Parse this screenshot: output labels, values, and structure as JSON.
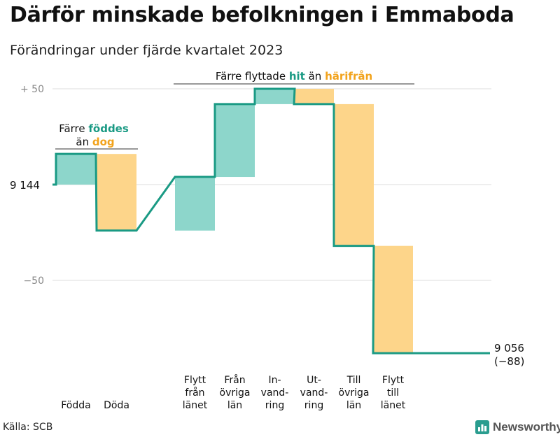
{
  "header": {
    "title": "Därför minskade befolkningen i Emmaboda",
    "subtitle": "Förändringar under fjärde kvartalet 2023"
  },
  "footer": {
    "source": "Källa: SCB",
    "brand": "Newsworthy"
  },
  "colors": {
    "in": "#8dd6cb",
    "out": "#fdd58a",
    "line": "#1a9a84",
    "highlight_in": "#1a9a84",
    "highlight_out": "#f2a31c",
    "grid": "#dddddd",
    "tick_text": "#888888",
    "brand_icon": "#2a9d8f"
  },
  "annotations": {
    "births": {
      "pre": "Färre",
      "hl1": "föddes",
      "mid": "än",
      "hl2": "dog"
    },
    "moves": {
      "pre": "Färre flyttade",
      "hl1": "hit",
      "mid": "än",
      "hl2": "härifrån"
    }
  },
  "chart_data": {
    "type": "waterfall",
    "start_value": 9144,
    "end_value": 9056,
    "end_label": "9 056",
    "end_change_label": "(−88)",
    "baseline_label": "9 144",
    "yticks": [
      {
        "label": "+  50",
        "value": 50
      },
      {
        "label": "−50",
        "value": -50
      }
    ],
    "ylim": [
      -90,
      55
    ],
    "steps": [
      {
        "label": [
          "Födda"
        ],
        "change": 16,
        "direction": "in",
        "group": 1
      },
      {
        "label": [
          "Döda"
        ],
        "change": -40,
        "direction": "out",
        "group": 1
      },
      {
        "label": [
          "Flytt",
          "från",
          "länet"
        ],
        "change": 28,
        "direction": "in",
        "group": 2
      },
      {
        "label": [
          "Från",
          "övriga",
          "län"
        ],
        "change": 38,
        "direction": "in",
        "group": 2
      },
      {
        "label": [
          "In-",
          "vand-",
          "ring"
        ],
        "change": 8,
        "direction": "in",
        "group": 2
      },
      {
        "label": [
          "Ut-",
          "vand-",
          "ring"
        ],
        "change": -8,
        "direction": "out",
        "group": 2
      },
      {
        "label": [
          "Till",
          "övriga",
          "län"
        ],
        "change": -74,
        "direction": "out",
        "group": 2
      },
      {
        "label": [
          "Flytt",
          "till",
          "länet"
        ],
        "change": -56,
        "direction": "out",
        "group": 2
      }
    ]
  }
}
